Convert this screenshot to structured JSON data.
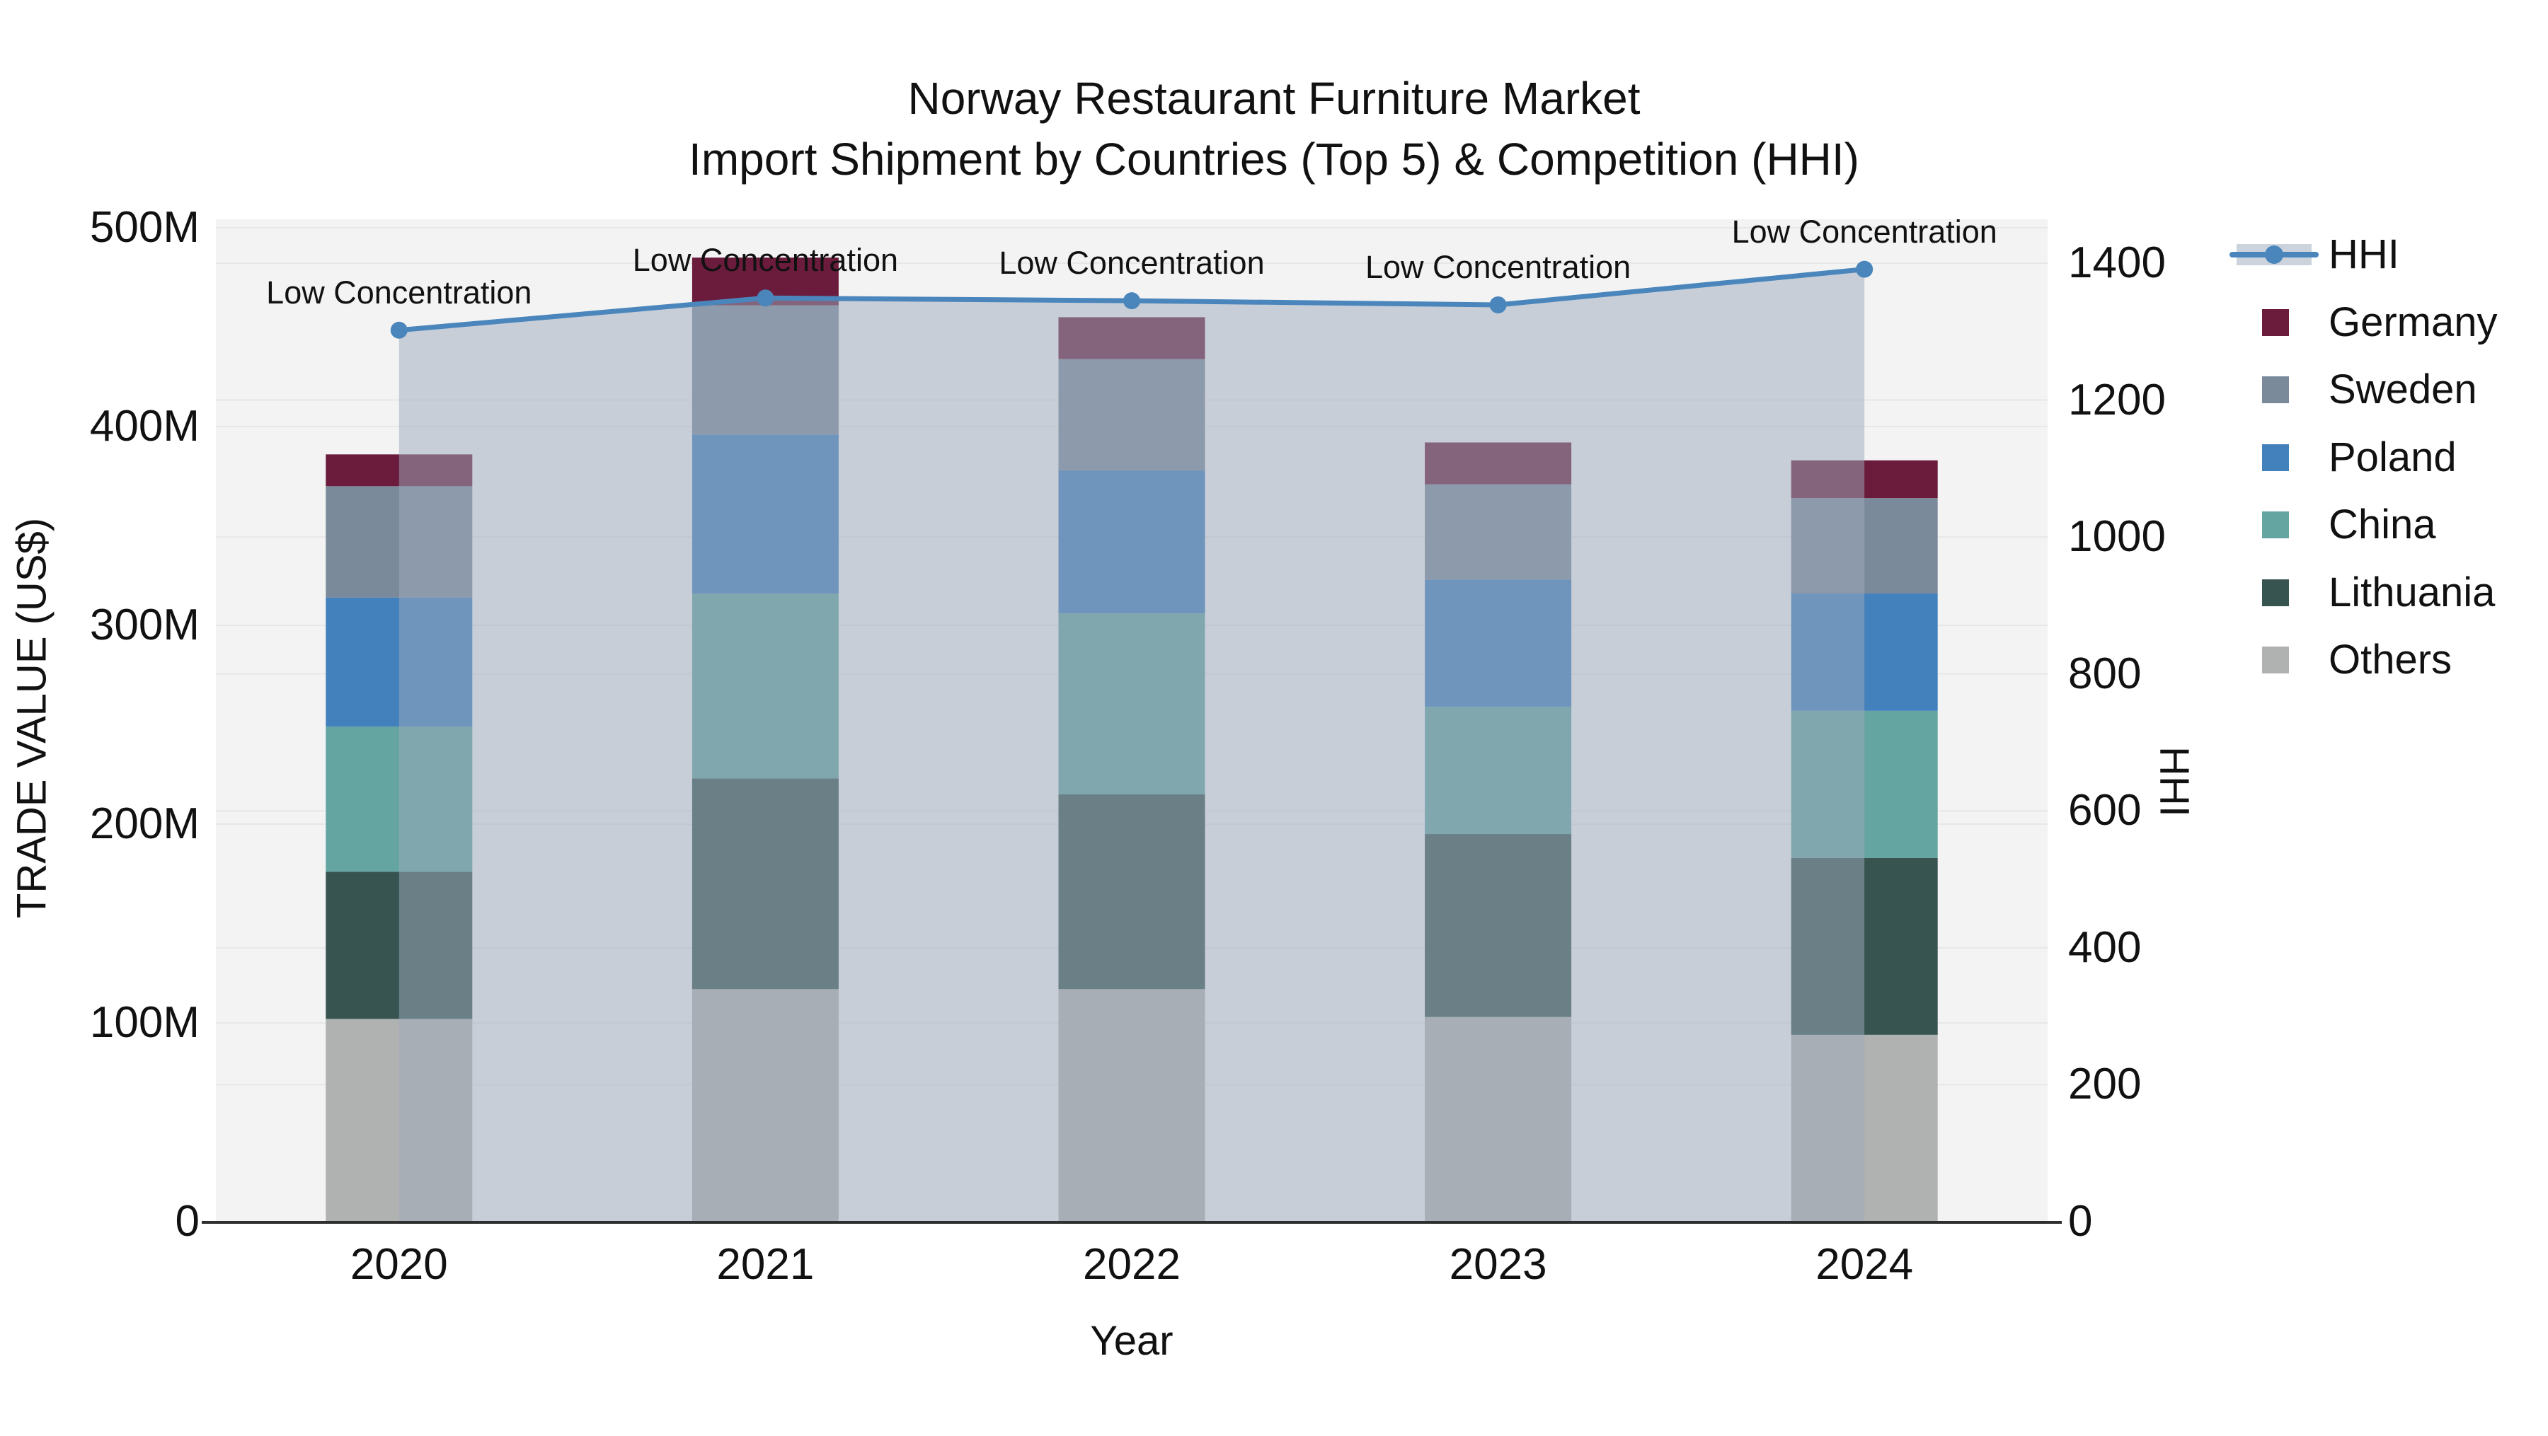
{
  "title": {
    "line1": "Norway Restaurant Furniture Market",
    "line2": "Import Shipment by Countries (Top 5) & Competition (HHI)"
  },
  "chart_data": {
    "type": "combo-stacked-bar-with-area-line",
    "categories": [
      "2020",
      "2021",
      "2022",
      "2023",
      "2024"
    ],
    "bar_value_unit": "Million US$",
    "series": [
      {
        "name": "Others",
        "color": "#b0b2b1",
        "values": [
          102,
          117,
          117,
          103,
          94
        ]
      },
      {
        "name": "Lithuania",
        "color": "#375450",
        "values": [
          74,
          106,
          98,
          92,
          89
        ]
      },
      {
        "name": "China",
        "color": "#64a5a1",
        "values": [
          73,
          93,
          91,
          64,
          74
        ]
      },
      {
        "name": "Poland",
        "color": "#4381bd",
        "values": [
          65,
          80,
          72,
          64,
          59
        ]
      },
      {
        "name": "Sweden",
        "color": "#7b8a9a",
        "values": [
          56,
          65,
          56,
          48,
          48
        ]
      },
      {
        "name": "Germany",
        "color": "#6b1c3c",
        "values": [
          16,
          24,
          21,
          21,
          19
        ]
      }
    ],
    "hhi": {
      "name": "HHI",
      "values": [
        1302,
        1349,
        1345,
        1339,
        1391
      ],
      "line_color": "#4a86bb",
      "fill_color": "rgba(157,169,188,0.5)",
      "annotations": [
        "Low Concentration",
        "Low Concentration",
        "Low Concentration",
        "Low Concentration",
        "Low Concentration"
      ]
    },
    "axes": {
      "left": {
        "title": "TRADE VALUE (US$)",
        "min": 0,
        "max": 500,
        "ticks": [
          {
            "label": "0",
            "value": 0
          },
          {
            "label": "100M",
            "value": 100
          },
          {
            "label": "200M",
            "value": 200
          },
          {
            "label": "300M",
            "value": 300
          },
          {
            "label": "400M",
            "value": 400
          },
          {
            "label": "500M",
            "value": 500
          }
        ]
      },
      "right": {
        "title": "HHI",
        "min": 0,
        "max": 1400,
        "ticks": [
          {
            "label": "0",
            "value": 0
          },
          {
            "label": "200",
            "value": 200
          },
          {
            "label": "400",
            "value": 400
          },
          {
            "label": "600",
            "value": 600
          },
          {
            "label": "800",
            "value": 800
          },
          {
            "label": "1000",
            "value": 1000
          },
          {
            "label": "1200",
            "value": 1200
          },
          {
            "label": "1400",
            "value": 1400
          }
        ]
      },
      "x": {
        "title": "Year"
      }
    },
    "legend": [
      {
        "label": "HHI",
        "icon": "line-marker",
        "color": "#4a86bb",
        "band_color": "#ccd3dc"
      },
      {
        "label": "Germany",
        "icon": "swatch",
        "color": "#6b1c3c"
      },
      {
        "label": "Sweden",
        "icon": "swatch",
        "color": "#7b8a9a"
      },
      {
        "label": "Poland",
        "icon": "swatch",
        "color": "#4381bd"
      },
      {
        "label": "China",
        "icon": "swatch",
        "color": "#64a5a1"
      },
      {
        "label": "Lithuania",
        "icon": "swatch",
        "color": "#375450"
      },
      {
        "label": "Others",
        "icon": "swatch",
        "color": "#b0b2b1"
      }
    ],
    "layout_hints": {
      "plot_background": "#f3f3f4",
      "gridline_color": "#e7e7e9",
      "axis_line_color": "#2f2f2f",
      "grid": "both-axes-horizontal",
      "legend_position": "right-outside"
    }
  }
}
